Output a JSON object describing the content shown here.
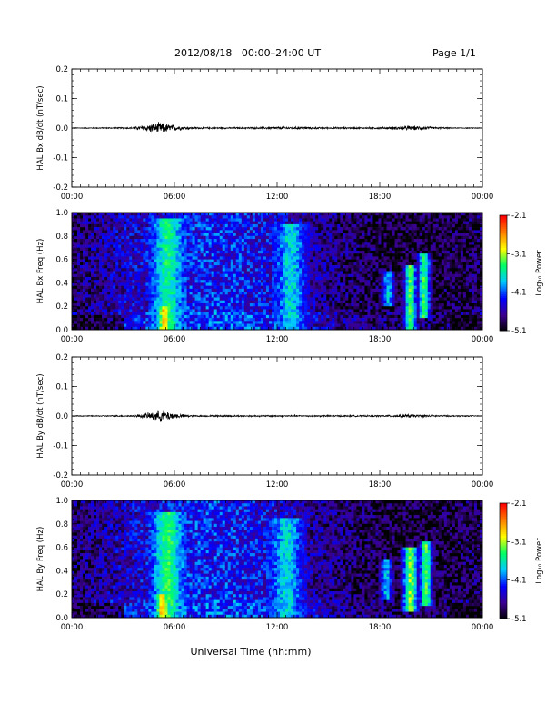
{
  "header": {
    "title": "2012/08/18   00:00–24:00 UT",
    "page": "Page 1/1"
  },
  "xaxis": {
    "label": "Universal Time (hh:mm)",
    "ticks": [
      "00:00",
      "06:00",
      "12:00",
      "18:00",
      "00:00"
    ],
    "range_hours": [
      0,
      24
    ]
  },
  "colorbar": {
    "label": "Log₁₀ Power",
    "ticks": [
      "-2.1",
      "-3.1",
      "-4.1",
      "-5.1"
    ],
    "range": [
      -5.1,
      -2.1
    ],
    "colormap": [
      "#000000",
      "#3b0090",
      "#0000ff",
      "#00c8ff",
      "#00ff64",
      "#ffff00",
      "#ff8000",
      "#ff0000"
    ]
  },
  "chart_data": [
    {
      "type": "line",
      "ylabel": "HAL Bx dB/dt (nT/sec)",
      "ylim": [
        -0.2,
        0.2
      ],
      "ytick_labels": [
        "0.2",
        "0.1",
        "0.0",
        "-0.1",
        "-0.2"
      ],
      "series": [
        {
          "x": [
            0,
            3.5,
            3.9,
            4.3,
            4.8,
            5.2,
            5.6,
            6.0,
            6.4,
            7.0,
            8,
            10,
            11.5,
            12.5,
            13.5,
            15,
            17,
            18.5,
            19.2,
            20,
            20.8,
            21.5,
            22.5,
            24
          ],
          "amp": [
            0.001,
            0.002,
            0.005,
            0.009,
            0.014,
            0.016,
            0.012,
            0.008,
            0.005,
            0.003,
            0.002,
            0.002,
            0.003,
            0.004,
            0.003,
            0.002,
            0.002,
            0.003,
            0.005,
            0.006,
            0.004,
            0.002,
            0.001,
            0.001
          ]
        }
      ]
    },
    {
      "type": "heatmap",
      "ylabel": "HAL Bx Freq (Hz)",
      "ylim": [
        0.0,
        1.0
      ],
      "ytick_labels": [
        "1.0",
        "0.8",
        "0.6",
        "0.4",
        "0.2",
        "0.0"
      ],
      "zlim": [
        -5.1,
        -2.1
      ],
      "features": [
        {
          "t": 5.6,
          "dt": 0.9,
          "f": 0.0,
          "df": 0.95,
          "z": -3.5
        },
        {
          "t": 5.4,
          "dt": 0.4,
          "f": 0.0,
          "df": 0.2,
          "z": -2.8
        },
        {
          "t": 12.8,
          "dt": 0.9,
          "f": 0.0,
          "df": 0.9,
          "z": -3.7
        },
        {
          "t": 19.8,
          "dt": 0.4,
          "f": 0.0,
          "df": 0.55,
          "z": -3.3
        },
        {
          "t": 20.6,
          "dt": 0.4,
          "f": 0.1,
          "df": 0.55,
          "z": -3.4
        },
        {
          "t": 18.5,
          "dt": 0.4,
          "f": 0.2,
          "df": 0.3,
          "z": -3.8
        }
      ]
    },
    {
      "type": "line",
      "ylabel": "HAL By dB/dt (nT/sec)",
      "ylim": [
        -0.2,
        0.2
      ],
      "ytick_labels": [
        "0.2",
        "0.1",
        "0.0",
        "-0.1",
        "-0.2"
      ],
      "series": [
        {
          "x": [
            0,
            3.5,
            4.0,
            4.5,
            5.0,
            5.3,
            5.7,
            6.1,
            6.6,
            7.2,
            8,
            10,
            12,
            14,
            16,
            18,
            19,
            19.8,
            20.5,
            21.5,
            24
          ],
          "amp": [
            0.001,
            0.002,
            0.004,
            0.009,
            0.015,
            0.017,
            0.012,
            0.007,
            0.004,
            0.002,
            0.002,
            0.002,
            0.002,
            0.002,
            0.002,
            0.002,
            0.003,
            0.005,
            0.003,
            0.002,
            0.001
          ]
        }
      ]
    },
    {
      "type": "heatmap",
      "ylabel": "HAL By Freq (Hz)",
      "ylim": [
        0.0,
        1.0
      ],
      "ytick_labels": [
        "1.0",
        "0.8",
        "0.6",
        "0.4",
        "0.2",
        "0.0"
      ],
      "zlim": [
        -5.1,
        -2.1
      ],
      "features": [
        {
          "t": 5.6,
          "dt": 0.9,
          "f": 0.0,
          "df": 0.9,
          "z": -3.4
        },
        {
          "t": 5.3,
          "dt": 0.4,
          "f": 0.0,
          "df": 0.2,
          "z": -2.7
        },
        {
          "t": 12.6,
          "dt": 0.9,
          "f": 0.0,
          "df": 0.85,
          "z": -3.7
        },
        {
          "t": 19.8,
          "dt": 0.5,
          "f": 0.05,
          "df": 0.55,
          "z": -3.2
        },
        {
          "t": 20.7,
          "dt": 0.4,
          "f": 0.1,
          "df": 0.55,
          "z": -3.3
        },
        {
          "t": 18.4,
          "dt": 0.4,
          "f": 0.15,
          "df": 0.35,
          "z": -3.8
        }
      ]
    }
  ]
}
